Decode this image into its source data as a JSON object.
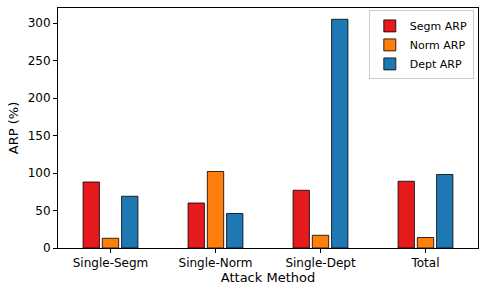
{
  "chart_data": {
    "type": "bar",
    "x_label": "Attack Method",
    "y_label": "ARP (%)",
    "categories": [
      "Single-Segm",
      "Single-Norm",
      "Single-Dept",
      "Total"
    ],
    "series": [
      {
        "name": "Segm ARP",
        "color": "#e41a1c",
        "values": [
          88,
          60,
          77,
          89
        ]
      },
      {
        "name": "Norm ARP",
        "color": "#ff7f0e",
        "values": [
          13,
          102,
          17,
          14
        ]
      },
      {
        "name": "Dept ARP",
        "color": "#1f77b4",
        "values": [
          69,
          46,
          305,
          98
        ]
      }
    ],
    "ylim": [
      0,
      320
    ],
    "yticks": [
      0,
      50,
      100,
      150,
      200,
      250,
      300
    ],
    "grid": false,
    "legend": "upper right"
  }
}
